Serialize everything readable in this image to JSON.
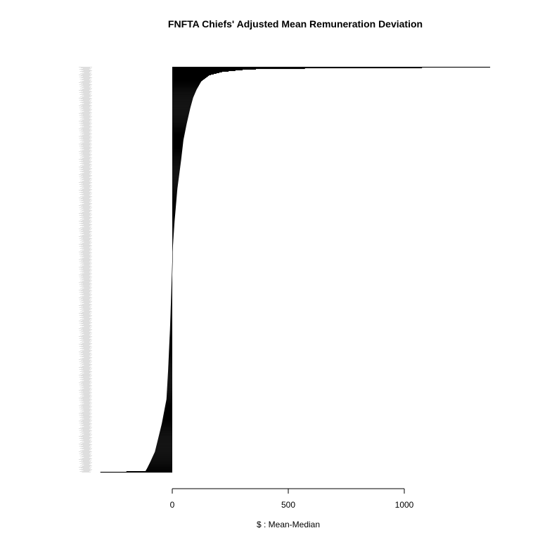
{
  "chart_data": {
    "type": "bar",
    "orientation": "horizontal",
    "sorted": "descending from top",
    "title": "FNFTA Chiefs' Adjusted Mean Remuneration Deviation",
    "xlabel": "$ : Mean-Median",
    "ylabel": "",
    "xlim": [
      -310,
      1380
    ],
    "x_ticks": [
      0,
      500,
      1000
    ],
    "x_tick_labels": [
      "0",
      "500",
      "1000"
    ],
    "bar_count": 580,
    "category_labels": "illegible (tiny grey names left of bars)",
    "colors": {
      "bars": "#000000",
      "category_labels": "#bdbdbd",
      "axis": "#000000"
    },
    "profile_points": [
      {
        "rank": 0.0,
        "value": 1370
      },
      {
        "rank": 0.002,
        "value": 1030
      },
      {
        "rank": 0.004,
        "value": 400
      },
      {
        "rank": 0.007,
        "value": 300
      },
      {
        "rank": 0.012,
        "value": 215
      },
      {
        "rank": 0.02,
        "value": 160
      },
      {
        "rank": 0.035,
        "value": 125
      },
      {
        "rank": 0.055,
        "value": 105
      },
      {
        "rank": 0.075,
        "value": 90
      },
      {
        "rank": 0.1,
        "value": 78
      },
      {
        "rank": 0.14,
        "value": 62
      },
      {
        "rank": 0.18,
        "value": 48
      },
      {
        "rank": 0.23,
        "value": 38
      },
      {
        "rank": 0.3,
        "value": 22
      },
      {
        "rank": 0.38,
        "value": 10
      },
      {
        "rank": 0.44,
        "value": 3
      },
      {
        "rank": 0.48,
        "value": 0
      },
      {
        "rank": 0.55,
        "value": -4
      },
      {
        "rank": 0.65,
        "value": -10
      },
      {
        "rank": 0.75,
        "value": -18
      },
      {
        "rank": 0.82,
        "value": -25
      },
      {
        "rank": 0.88,
        "value": -45
      },
      {
        "rank": 0.92,
        "value": -62
      },
      {
        "rank": 0.95,
        "value": -75
      },
      {
        "rank": 0.975,
        "value": -95
      },
      {
        "rank": 0.99,
        "value": -108
      },
      {
        "rank": 0.997,
        "value": -115
      },
      {
        "rank": 1.0,
        "value": -310
      }
    ]
  }
}
